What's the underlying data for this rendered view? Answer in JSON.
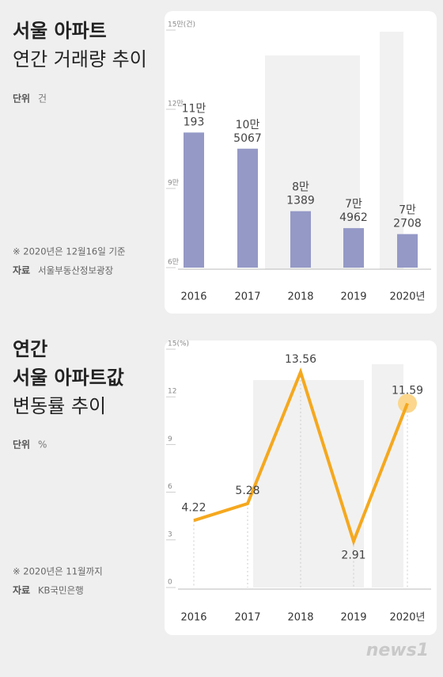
{
  "chart_data": [
    {
      "type": "bar",
      "title_lines": [
        "서울 아파트",
        "연간 거래량 추이"
      ],
      "unit_label": "단위",
      "unit": "건",
      "note": "※ 2020년은 12월16일 기준",
      "source_label": "자료",
      "source": "서울부동산정보광장",
      "categories": [
        "2016",
        "2017",
        "2018",
        "2019",
        "2020년"
      ],
      "values": [
        111193,
        105067,
        81389,
        74962,
        72708
      ],
      "value_labels": [
        [
          "11만",
          "193"
        ],
        [
          "10만",
          "5067"
        ],
        [
          "8만",
          "1389"
        ],
        [
          "7만",
          "4962"
        ],
        [
          "7만",
          "2708"
        ]
      ],
      "color": "#9499c6",
      "ylim": [
        60000,
        150000
      ],
      "yticks": [
        {
          "value": 60000,
          "label": "6만"
        },
        {
          "value": 90000,
          "label": "9만"
        },
        {
          "value": 120000,
          "label": "12만"
        },
        {
          "value": 150000,
          "label": "15만(건)"
        }
      ]
    },
    {
      "type": "line",
      "title_lines": [
        "연간",
        "서울 아파트값",
        "변동률 추이"
      ],
      "unit_label": "단위",
      "unit": "%",
      "note": "※ 2020년은 11월까지",
      "source_label": "자료",
      "source": "KB국민은행",
      "categories": [
        "2016",
        "2017",
        "2018",
        "2019",
        "2020년"
      ],
      "values": [
        4.22,
        5.28,
        13.56,
        2.91,
        11.59
      ],
      "color": "#f5a81e",
      "ylim": [
        0,
        15
      ],
      "yticks": [
        0,
        3,
        6,
        9,
        12,
        {
          "value": 15,
          "label": "15(%)"
        }
      ]
    }
  ],
  "footer": {
    "logo": "news1"
  }
}
